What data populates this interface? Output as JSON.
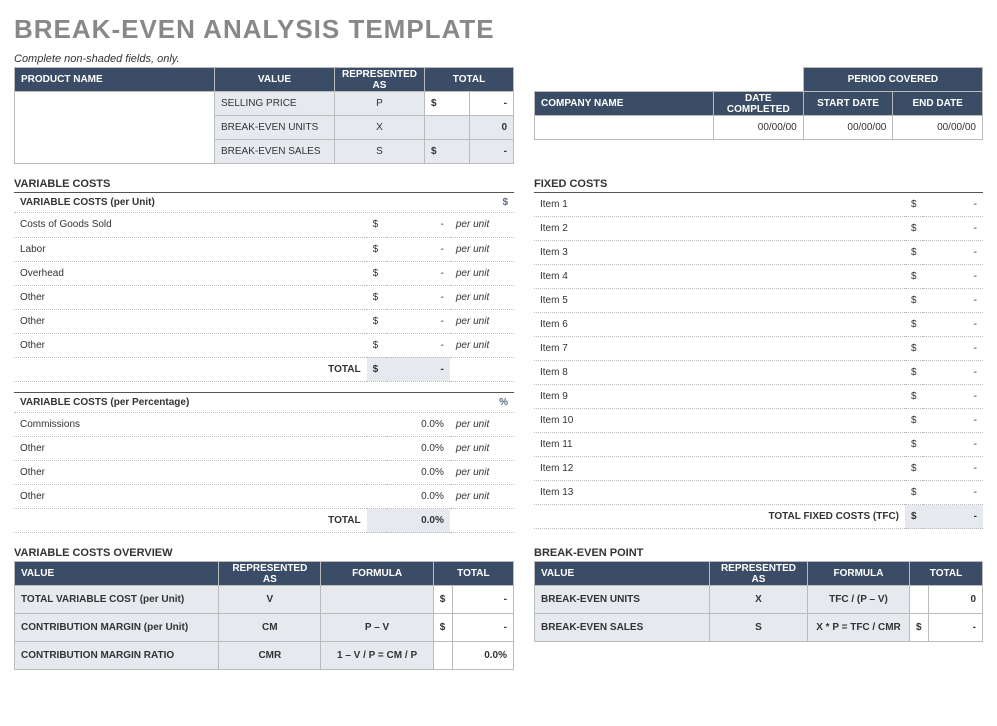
{
  "title": "BREAK-EVEN ANALYSIS TEMPLATE",
  "instruction": "Complete non-shaded fields, only.",
  "colors": {
    "header_bg": "#3b4d66",
    "header_fg": "#ffffff",
    "shade_bg": "#e6eaef",
    "title_color": "#888888",
    "accent": "#5a6c86"
  },
  "product_table": {
    "headers": [
      "PRODUCT NAME",
      "VALUE",
      "REPRESENTED AS",
      "TOTAL"
    ],
    "rows": [
      {
        "name": "",
        "value": "SELLING PRICE",
        "rep": "P",
        "dollar": "$",
        "total": "-"
      },
      {
        "name": null,
        "value": "BREAK-EVEN UNITS",
        "rep": "X",
        "dollar": "",
        "total": "0"
      },
      {
        "name": null,
        "value": "BREAK-EVEN SALES",
        "rep": "S",
        "dollar": "$",
        "total": "-"
      }
    ]
  },
  "company_table": {
    "period_header": "PERIOD   COVERED",
    "headers": [
      "COMPANY NAME",
      "DATE COMPLETED",
      "START DATE",
      "END DATE"
    ],
    "row": {
      "name": "",
      "completed": "00/00/00",
      "start": "00/00/00",
      "end": "00/00/00"
    }
  },
  "var_costs": {
    "title": "VARIABLE COSTS",
    "unit_header": "VARIABLE COSTS (per Unit)",
    "unit_symbol": "$",
    "unit_rows": [
      {
        "label": "Costs of Goods Sold",
        "dollar": "$",
        "val": "-",
        "unit": "per unit"
      },
      {
        "label": "Labor",
        "dollar": "$",
        "val": "-",
        "unit": "per unit"
      },
      {
        "label": "Overhead",
        "dollar": "$",
        "val": "-",
        "unit": "per unit"
      },
      {
        "label": "Other",
        "dollar": "$",
        "val": "-",
        "unit": "per unit"
      },
      {
        "label": "Other",
        "dollar": "$",
        "val": "-",
        "unit": "per unit"
      },
      {
        "label": "Other",
        "dollar": "$",
        "val": "-",
        "unit": "per unit"
      }
    ],
    "unit_total_label": "TOTAL",
    "unit_total_dollar": "$",
    "unit_total_val": "-",
    "pct_header": "VARIABLE COSTS (per Percentage)",
    "pct_symbol": "%",
    "pct_rows": [
      {
        "label": "Commissions",
        "val": "0.0%",
        "unit": "per unit"
      },
      {
        "label": "Other",
        "val": "0.0%",
        "unit": "per unit"
      },
      {
        "label": "Other",
        "val": "0.0%",
        "unit": "per unit"
      },
      {
        "label": "Other",
        "val": "0.0%",
        "unit": "per unit"
      }
    ],
    "pct_total_label": "TOTAL",
    "pct_total_val": "0.0%"
  },
  "fixed_costs": {
    "title": "FIXED COSTS",
    "rows": [
      {
        "label": "Item 1",
        "dollar": "$",
        "val": "-"
      },
      {
        "label": "Item 2",
        "dollar": "$",
        "val": "-"
      },
      {
        "label": "Item 3",
        "dollar": "$",
        "val": "-"
      },
      {
        "label": "Item 4",
        "dollar": "$",
        "val": "-"
      },
      {
        "label": "Item 5",
        "dollar": "$",
        "val": "-"
      },
      {
        "label": "Item 6",
        "dollar": "$",
        "val": "-"
      },
      {
        "label": "Item 7",
        "dollar": "$",
        "val": "-"
      },
      {
        "label": "Item 8",
        "dollar": "$",
        "val": "-"
      },
      {
        "label": "Item 9",
        "dollar": "$",
        "val": "-"
      },
      {
        "label": "Item 10",
        "dollar": "$",
        "val": "-"
      },
      {
        "label": "Item 11",
        "dollar": "$",
        "val": "-"
      },
      {
        "label": "Item 12",
        "dollar": "$",
        "val": "-"
      },
      {
        "label": "Item 13",
        "dollar": "$",
        "val": "-"
      }
    ],
    "total_label": "TOTAL FIXED COSTS (TFC)",
    "total_dollar": "$",
    "total_val": "-"
  },
  "var_overview": {
    "title": "VARIABLE COSTS OVERVIEW",
    "headers": [
      "VALUE",
      "REPRESENTED AS",
      "FORMULA",
      "TOTAL"
    ],
    "rows": [
      {
        "value": "TOTAL VARIABLE COST (per Unit)",
        "rep": "V",
        "formula": "",
        "dollar": "$",
        "total": "-"
      },
      {
        "value": "CONTRIBUTION MARGIN (per Unit)",
        "rep": "CM",
        "formula": "P – V",
        "dollar": "$",
        "total": "-"
      },
      {
        "value": "CONTRIBUTION MARGIN RATIO",
        "rep": "CMR",
        "formula": "1 – V / P = CM / P",
        "dollar": "",
        "total": "0.0%"
      }
    ]
  },
  "bep": {
    "title": "BREAK-EVEN POINT",
    "headers": [
      "VALUE",
      "REPRESENTED AS",
      "FORMULA",
      "TOTAL"
    ],
    "rows": [
      {
        "value": "BREAK-EVEN UNITS",
        "rep": "X",
        "formula": "TFC / (P – V)",
        "dollar": "",
        "total": "0"
      },
      {
        "value": "BREAK-EVEN SALES",
        "rep": "S",
        "formula": "X * P = TFC / CMR",
        "dollar": "$",
        "total": "-"
      }
    ]
  }
}
